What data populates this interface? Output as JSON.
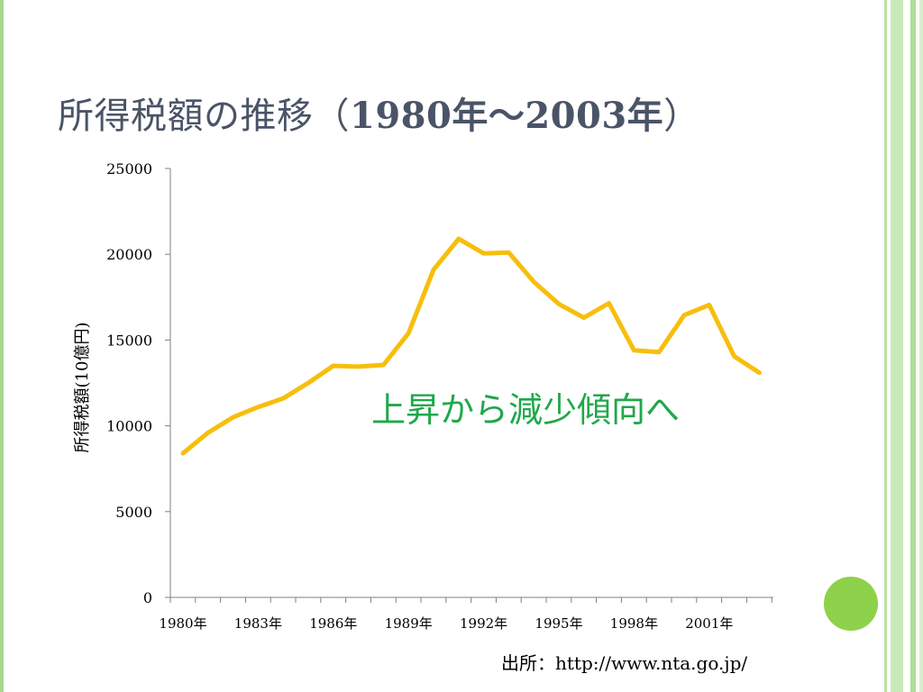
{
  "slide": {
    "title_prefix": "所得税額の推移（",
    "title_years": "1980年～2003年",
    "title_suffix": "）",
    "source": "出所：http://www.nta.go.jp/"
  },
  "chart_data": {
    "type": "line",
    "title": "",
    "xlabel": "",
    "ylabel": "所得税額(10億円)",
    "ylim": [
      0,
      25000
    ],
    "yticks": [
      0,
      5000,
      10000,
      15000,
      20000,
      25000
    ],
    "x": [
      1980,
      1981,
      1982,
      1983,
      1984,
      1985,
      1986,
      1987,
      1988,
      1989,
      1990,
      1991,
      1992,
      1993,
      1994,
      1995,
      1996,
      1997,
      1998,
      1999,
      2000,
      2001,
      2002,
      2003
    ],
    "xtick_labels": [
      "1980年",
      "1983年",
      "1986年",
      "1989年",
      "1992年",
      "1995年",
      "1998年",
      "2001年"
    ],
    "series": [
      {
        "values": [
          8400,
          9600,
          10500,
          11100,
          11600,
          12500,
          13500,
          13450,
          13550,
          15400,
          19100,
          20900,
          20050,
          20100,
          18400,
          17100,
          16300,
          17150,
          14400,
          14300,
          16450,
          17050,
          14050,
          13100
        ],
        "color": "#f7be0c"
      }
    ],
    "annotation": "上昇から減少傾向へ",
    "grid": false,
    "legend": "none"
  }
}
